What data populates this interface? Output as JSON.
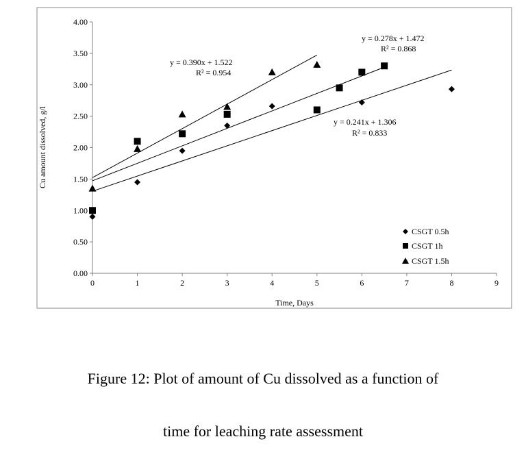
{
  "chart_data": {
    "type": "scatter",
    "xlabel": "Time, Days",
    "ylabel": "Cu amount dissolved, g/l",
    "xlim": [
      0,
      9
    ],
    "ylim": [
      0,
      4
    ],
    "x_ticks": [
      "0",
      "1",
      "2",
      "3",
      "4",
      "5",
      "6",
      "7",
      "8",
      "9"
    ],
    "y_ticks": [
      "0.00",
      "0.50",
      "1.00",
      "1.50",
      "2.00",
      "2.50",
      "3.00",
      "3.50",
      "4.00"
    ],
    "grid": false,
    "legend_position": "bottom-right",
    "series": [
      {
        "name": "CSGT 0.5h",
        "marker": "diamond",
        "points": [
          [
            0,
            0.9
          ],
          [
            1,
            1.45
          ],
          [
            2,
            1.95
          ],
          [
            3,
            2.35
          ],
          [
            4,
            2.66
          ],
          [
            6,
            2.72
          ],
          [
            8,
            2.93
          ]
        ],
        "trendline": {
          "slope": 0.241,
          "intercept": 1.306,
          "x_range": [
            0,
            8
          ],
          "equation": "y = 0.241x + 1.306",
          "r2": "R² = 0.833"
        }
      },
      {
        "name": "CSGT 1h",
        "marker": "square",
        "points": [
          [
            0,
            1.0
          ],
          [
            1,
            2.1
          ],
          [
            2,
            2.22
          ],
          [
            3,
            2.53
          ],
          [
            5,
            2.6
          ],
          [
            5.5,
            2.95
          ],
          [
            6,
            3.2
          ],
          [
            6.5,
            3.3
          ]
        ],
        "trendline": {
          "slope": 0.278,
          "intercept": 1.472,
          "x_range": [
            0,
            6.5
          ],
          "equation": "y = 0.278x + 1.472",
          "r2": "R² = 0.868"
        }
      },
      {
        "name": "CSGT 1.5h",
        "marker": "triangle",
        "points": [
          [
            0,
            1.35
          ],
          [
            1,
            1.98
          ],
          [
            2,
            2.53
          ],
          [
            3,
            2.65
          ],
          [
            4,
            3.2
          ],
          [
            5,
            3.32
          ]
        ],
        "trendline": {
          "slope": 0.39,
          "intercept": 1.522,
          "x_range": [
            0,
            5
          ],
          "equation": "y = 0.390x + 1.522",
          "r2": "R² = 0.954"
        }
      }
    ]
  },
  "caption": {
    "line1": "Figure 12: Plot of amount of Cu dissolved as a function of",
    "line2": "time for leaching rate assessment"
  }
}
